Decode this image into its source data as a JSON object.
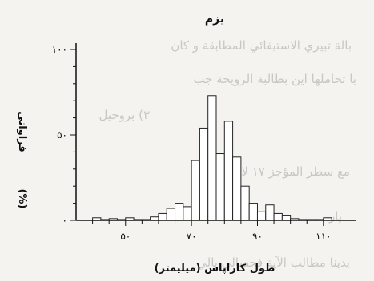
{
  "background_text": [
    "بالة تبيري الاستيفائي المطابقة و كان",
    "با تحاملها اين بطالبة الرويحة جب",
    "٣) بروحيل",
    "مع سطر المؤجز ١٧ لا كنا",
    "بار",
    "بدينا مطالب الآية فحصالي بالي"
  ],
  "chart_data": {
    "type": "histogram",
    "title": "يزم",
    "xlabel": "طول كاراپاس (ميليمتر)",
    "ylabel": "فراوانی",
    "ylabel_unit": "(%)",
    "x_range": [
      35,
      120
    ],
    "ylim": [
      0,
      100
    ],
    "x_ticks": [
      50,
      70,
      90,
      110
    ],
    "x_tick_labels": [
      "۵۰",
      "۷۰",
      "۹۰",
      "۱۱۰"
    ],
    "y_ticks": [
      0,
      50,
      100
    ],
    "y_tick_labels": [
      "۰",
      "۵۰",
      "۱۰۰"
    ],
    "bin_width": 2.5,
    "bins": [
      {
        "start": 40,
        "value": 1.5
      },
      {
        "start": 42.5,
        "value": 0.5
      },
      {
        "start": 45,
        "value": 1
      },
      {
        "start": 47.5,
        "value": 0.5
      },
      {
        "start": 50,
        "value": 1.5
      },
      {
        "start": 52.5,
        "value": 0.5
      },
      {
        "start": 55,
        "value": 0.5
      },
      {
        "start": 57.5,
        "value": 2
      },
      {
        "start": 60,
        "value": 4
      },
      {
        "start": 62.5,
        "value": 7
      },
      {
        "start": 65,
        "value": 10
      },
      {
        "start": 67.5,
        "value": 8
      },
      {
        "start": 70,
        "value": 35
      },
      {
        "start": 72.5,
        "value": 54
      },
      {
        "start": 75,
        "value": 73
      },
      {
        "start": 77.5,
        "value": 39
      },
      {
        "start": 80,
        "value": 58
      },
      {
        "start": 82.5,
        "value": 37
      },
      {
        "start": 85,
        "value": 20
      },
      {
        "start": 87.5,
        "value": 10
      },
      {
        "start": 90,
        "value": 5
      },
      {
        "start": 92.5,
        "value": 9
      },
      {
        "start": 95,
        "value": 4
      },
      {
        "start": 97.5,
        "value": 3
      },
      {
        "start": 100,
        "value": 1
      },
      {
        "start": 102.5,
        "value": 0.5
      },
      {
        "start": 105,
        "value": 0.5
      },
      {
        "start": 107.5,
        "value": 0.5
      },
      {
        "start": 110,
        "value": 1.5
      }
    ],
    "grid": false,
    "colors": {
      "bar_fill": "#ffffff",
      "bar_stroke": "#222222",
      "axis": "#111111"
    }
  }
}
